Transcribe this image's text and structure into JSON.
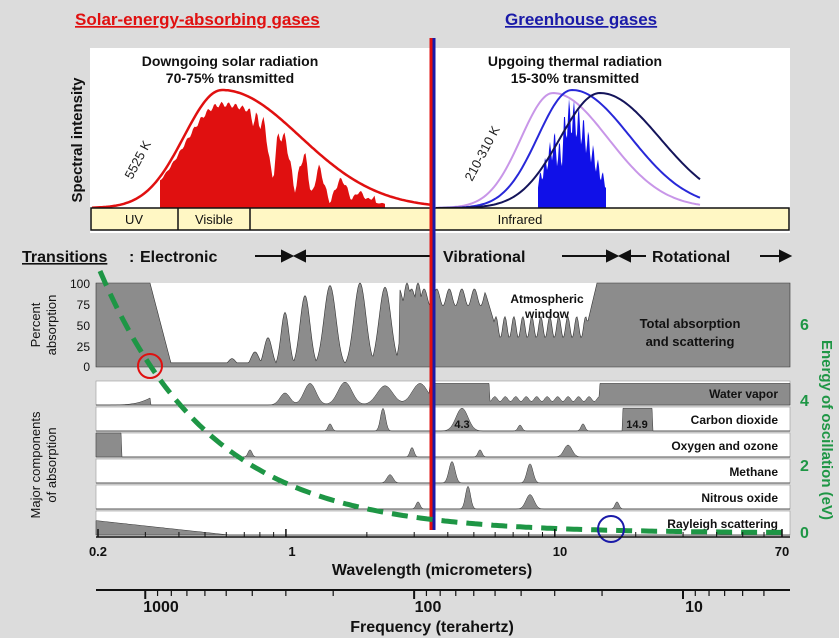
{
  "header": {
    "left_title": "Solar-energy-absorbing gases",
    "right_title": "Greenhouse gases"
  },
  "solar": {
    "line1": "Downgoing solar radiation",
    "line2": "70-75% transmitted",
    "temp_label": "5525 K"
  },
  "thermal": {
    "line1": "Upgoing thermal radiation",
    "line2": "15-30% transmitted",
    "temp_label": "210-310 K"
  },
  "spectrum": {
    "ylabel": "Spectral intensity",
    "bands": [
      "UV",
      "Visible",
      "Infrared"
    ]
  },
  "transitions": {
    "label": "Transitions",
    "electronic": "Electronic",
    "vibrational": "Vibrational",
    "rotational": "Rotational"
  },
  "absorption": {
    "ylabel_line1": "Percent",
    "ylabel_line2": "absorption",
    "yticks": [
      "100",
      "75",
      "50",
      "25",
      "0"
    ],
    "window_line1": "Atmospheric",
    "window_line2": "window",
    "total_line1": "Total absorption",
    "total_line2": "and scattering"
  },
  "components": {
    "ylabel_line1": "Major components",
    "ylabel_line2": "of absorption",
    "rows": [
      "Water vapor",
      "Carbon dioxide",
      "Oxygen and ozone",
      "Methane",
      "Nitrous oxide",
      "Rayleigh scattering"
    ],
    "co2_band_a": "4.3",
    "co2_band_b": "14.9"
  },
  "energy_axis": {
    "label": "Energy of oscillation (eV)",
    "ticks": [
      "6",
      "4",
      "2",
      "0"
    ],
    "color": "#1e9645"
  },
  "wavelength_axis": {
    "label": "Wavelength (micrometers)",
    "ticks": [
      "0.2",
      "1",
      "10",
      "70"
    ]
  },
  "frequency_axis": {
    "label": "Frequency (terahertz)",
    "ticks": [
      "1000",
      "100",
      "10"
    ]
  },
  "colors": {
    "solar": "#e01010",
    "thermal": "#1a1aa8",
    "absorption_fill": "#8c8c8c",
    "band_fill": "#fff7c4",
    "frame_bg": "#dcdcdc"
  }
}
